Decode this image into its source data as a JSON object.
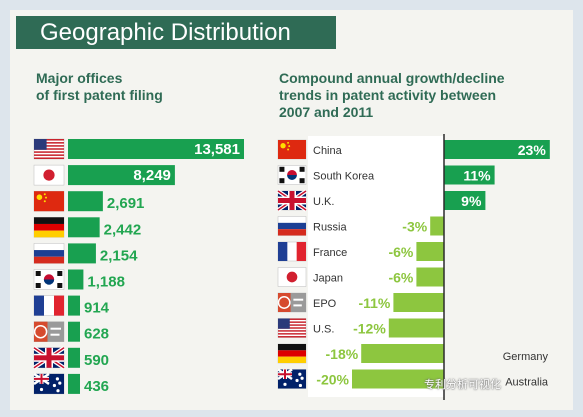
{
  "header": {
    "title": "Geographic Distribution"
  },
  "left_subtitle": [
    "Major offices",
    "of first patent filing"
  ],
  "right_subtitle": [
    "Compound annual growth/decline",
    "trends in patent activity between",
    "2007 and 2011"
  ],
  "colors": {
    "dark_green": "#2f6b55",
    "bar_green": "#18a050",
    "light_green": "#8dc63f",
    "text_green": "#22a651",
    "bg": "#f4f4f0"
  },
  "chart_data": [
    {
      "type": "bar",
      "title": "Major offices of first patent filing",
      "categories": [
        "U.S.",
        "Japan",
        "China",
        "Germany",
        "Russia",
        "South Korea",
        "France",
        "EPO",
        "U.K.",
        "Australia"
      ],
      "flags": [
        "us-flag-icon",
        "japan-flag-icon",
        "china-flag-icon",
        "germany-flag-icon",
        "russia-flag-icon",
        "south-korea-flag-icon",
        "france-flag-icon",
        "epo-flag-icon",
        "uk-flag-icon",
        "australia-flag-icon"
      ],
      "labels": [
        "13,581",
        "8,249",
        "2,691",
        "2,442",
        "2,154",
        "1,188",
        "914",
        "628",
        "590",
        "436"
      ],
      "values": [
        13581,
        8249,
        2691,
        2442,
        2154,
        1188,
        914,
        628,
        590,
        436
      ],
      "orientation": "horizontal"
    },
    {
      "type": "bar",
      "title": "Compound annual growth/decline trends in patent activity between 2007 and 2011",
      "categories": [
        "China",
        "South Korea",
        "U.K.",
        "Russia",
        "France",
        "Japan",
        "EPO",
        "U.S.",
        "Germany",
        "Australia"
      ],
      "flags": [
        "china-flag-icon",
        "south-korea-flag-icon",
        "uk-flag-icon",
        "russia-flag-icon",
        "france-flag-icon",
        "japan-flag-icon",
        "epo-flag-icon",
        "us-flag-icon",
        "germany-flag-icon",
        "australia-flag-icon"
      ],
      "row_labels": [
        "China",
        "South Korea",
        "U.K.",
        "Russia",
        "France",
        "Japan",
        "EPO",
        "U.S.",
        "",
        ""
      ],
      "side_labels": [
        "",
        "",
        "",
        "",
        "",
        "",
        "",
        "",
        "Germany",
        "Australia"
      ],
      "labels": [
        "23%",
        "11%",
        "9%",
        "-3%",
        "-6%",
        "-6%",
        "-11%",
        "-12%",
        "-18%",
        "-20%"
      ],
      "values": [
        23,
        11,
        9,
        -3,
        -6,
        -6,
        -11,
        -12,
        -18,
        -20
      ],
      "orientation": "horizontal"
    }
  ],
  "watermark": "专利分析可视化"
}
